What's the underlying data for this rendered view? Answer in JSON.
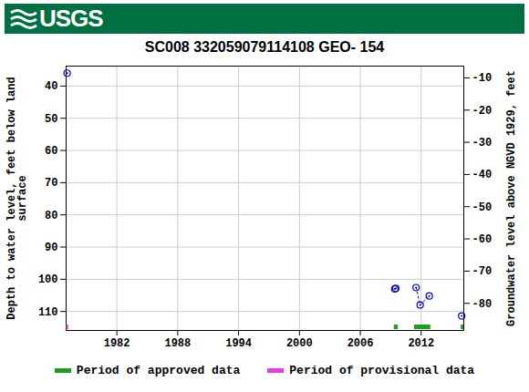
{
  "chart_data": {
    "type": "scatter",
    "logo_text": "USGS",
    "title": "SC008 332059079114108 GEO- 154",
    "y_label": "Depth to water level, feet below land\nsurface",
    "y2_label": "Groundwater level above NGVD 1929, feet",
    "xlim": [
      1977.0,
      2016.2
    ],
    "xticks": [
      1982,
      1988,
      1994,
      2000,
      2006,
      2012
    ],
    "ylim": [
      33.8,
      115.9
    ],
    "yticks": [
      40,
      50,
      60,
      70,
      80,
      90,
      100,
      110
    ],
    "y2lim": [
      -6.34,
      -88.44
    ],
    "y2ticks": [
      -10,
      -20,
      -30,
      -40,
      -50,
      -60,
      -70,
      -80
    ],
    "grid": true,
    "series": [
      {
        "color": "#0000cc",
        "marker": "circle",
        "line_style": "dotted",
        "x": [
          1977.1,
          null,
          2009.4,
          2009.5,
          null,
          2011.5,
          2011.9,
          2012.8,
          null,
          2016.0
        ],
        "values": [
          36.0,
          null,
          103.0,
          102.8,
          null,
          102.6,
          108.0,
          105.2,
          null,
          111.4
        ]
      },
      {
        "name": "Period of approved data",
        "color": "#1e9e1e",
        "type": "period",
        "periods": [
          [
            2009.3,
            2009.7
          ],
          [
            2011.3,
            2012.9
          ],
          [
            2015.9,
            2016.2
          ]
        ]
      },
      {
        "name": "Period of provisional data",
        "color": "#e040e0",
        "type": "period",
        "periods": [
          [
            1977.0,
            1977.2
          ]
        ]
      }
    ]
  }
}
